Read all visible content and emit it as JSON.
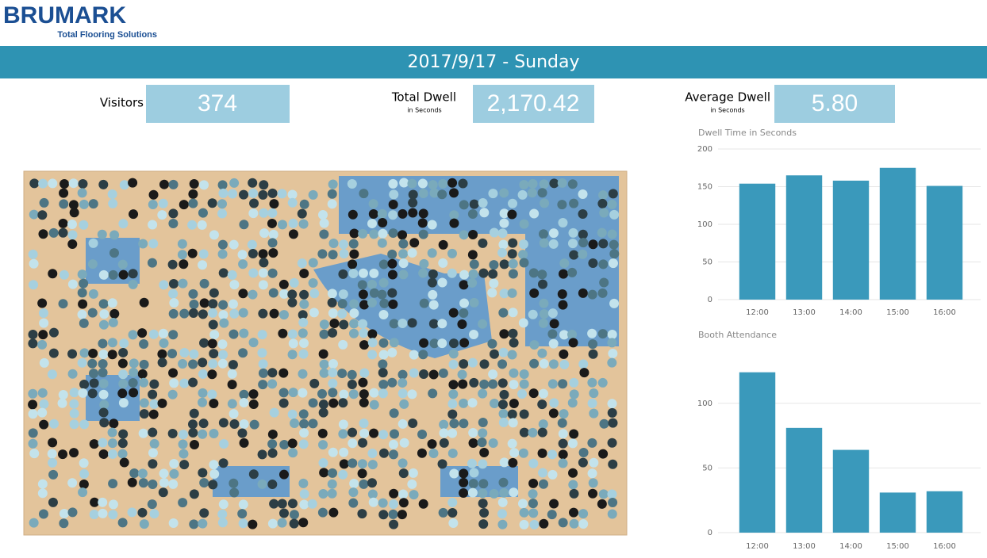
{
  "logo": {
    "name": "BRUMARK",
    "tagline": "Total Flooring Solutions"
  },
  "title": "2017/9/17 - Sunday",
  "kpis": [
    {
      "label": "Visitors",
      "value": "374"
    },
    {
      "label": "Total Dwell",
      "sublabel": "in Seconds",
      "value": "2,170.42"
    },
    {
      "label": "Average Dwell",
      "sublabel": "in Seconds",
      "value": "5.80"
    }
  ],
  "chart_data": [
    {
      "type": "bar",
      "title": "Dwell Time in Seconds",
      "categories": [
        "12:00",
        "13:00",
        "14:00",
        "15:00",
        "16:00"
      ],
      "values": [
        154,
        165,
        158,
        175,
        151
      ],
      "color": "#3a99bb",
      "ylim": [
        0,
        200
      ],
      "yticks": [
        0,
        50,
        100,
        150,
        200
      ],
      "grid": true
    },
    {
      "type": "bar",
      "title": "Booth Attendance",
      "categories": [
        "12:00",
        "13:00",
        "14:00",
        "15:00",
        "16:00"
      ],
      "values": [
        124,
        81,
        64,
        31,
        32
      ],
      "color": "#3a99bb",
      "ylim": [
        0,
        133
      ],
      "yticks": [
        0,
        50,
        100
      ],
      "grid": true
    }
  ]
}
